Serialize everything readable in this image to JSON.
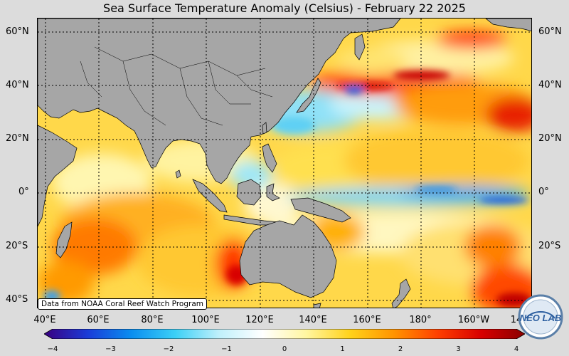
{
  "title": "Sea Surface Temperature Anomaly (Celsius) - February 22 2025",
  "lat_labels": [
    "60°N",
    "40°N",
    "20°N",
    "0°",
    "20°S",
    "40°S"
  ],
  "lon_labels": [
    "40°E",
    "60°E",
    "80°E",
    "100°E",
    "120°E",
    "140°E",
    "160°E",
    "180°",
    "160°W",
    "14"
  ],
  "credit": "Data from NOAA Coral Reef Watch Program",
  "logo_text": "NEO LAB",
  "colorbar": {
    "ticks": [
      "−4",
      "−3",
      "−2",
      "−1",
      "0",
      "1",
      "2",
      "3",
      "4"
    ],
    "range": [
      -4,
      4
    ],
    "colors": [
      "#3a0080",
      "#1a3cd8",
      "#0a8ef0",
      "#3cd0f6",
      "#bff0fb",
      "#ffffff",
      "#fff6a0",
      "#ffd21a",
      "#ff9400",
      "#ff4000",
      "#d80000",
      "#8a0000"
    ]
  },
  "map": {
    "extent_lon": [
      35,
      225
    ],
    "extent_lat": [
      -43,
      65
    ],
    "grid": "dotted",
    "land_color": "#a6a6a6",
    "ocean_base_color": "#ffd84a"
  }
}
